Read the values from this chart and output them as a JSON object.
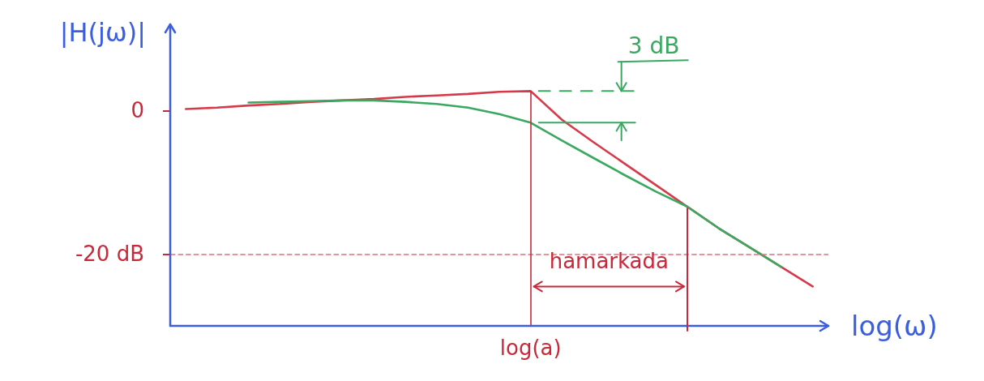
{
  "chart_data": {
    "type": "line",
    "xlabel": "log(ω)",
    "ylabel": "|H(jω)|",
    "annotations": [
      "3 dB",
      "hamarkada"
    ],
    "categories": [
      null,
      null,
      null,
      null,
      null,
      null,
      null,
      null,
      null,
      null,
      null,
      "log(a)",
      null,
      null,
      null,
      null,
      null,
      null,
      null,
      null,
      null
    ],
    "series": [
      {
        "color": "#d63a4a",
        "values": [
          0.2,
          0.4,
          0.7,
          0.9,
          1.2,
          1.4,
          1.6,
          1.9,
          2.1,
          2.3,
          2.6,
          2.7,
          -1.3,
          -4.4,
          -7.4,
          -10.4,
          -13.4,
          -16.4,
          -19.1,
          -21.8,
          -24.5
        ]
      },
      {
        "color": "#3aa860",
        "values": [
          null,
          null,
          1.1,
          1.2,
          1.3,
          1.4,
          1.4,
          1.2,
          0.9,
          0.4,
          -0.5,
          -1.7,
          -4.2,
          -6.6,
          -9.0,
          -11.3,
          -13.4,
          -16.4,
          -19.1,
          -21.8,
          null
        ]
      }
    ],
    "ylim": [
      -30,
      12
    ],
    "yticks": [
      0,
      {
        "value": -20,
        "label": "-20 dB"
      }
    ],
    "ref_lines": [
      {
        "axis": "y",
        "value": -20,
        "color": "#e0707c",
        "line_style": "dashed"
      },
      {
        "axis": "x",
        "value": "log(a)",
        "color": "#c8283a"
      }
    ],
    "marker": "none"
  }
}
